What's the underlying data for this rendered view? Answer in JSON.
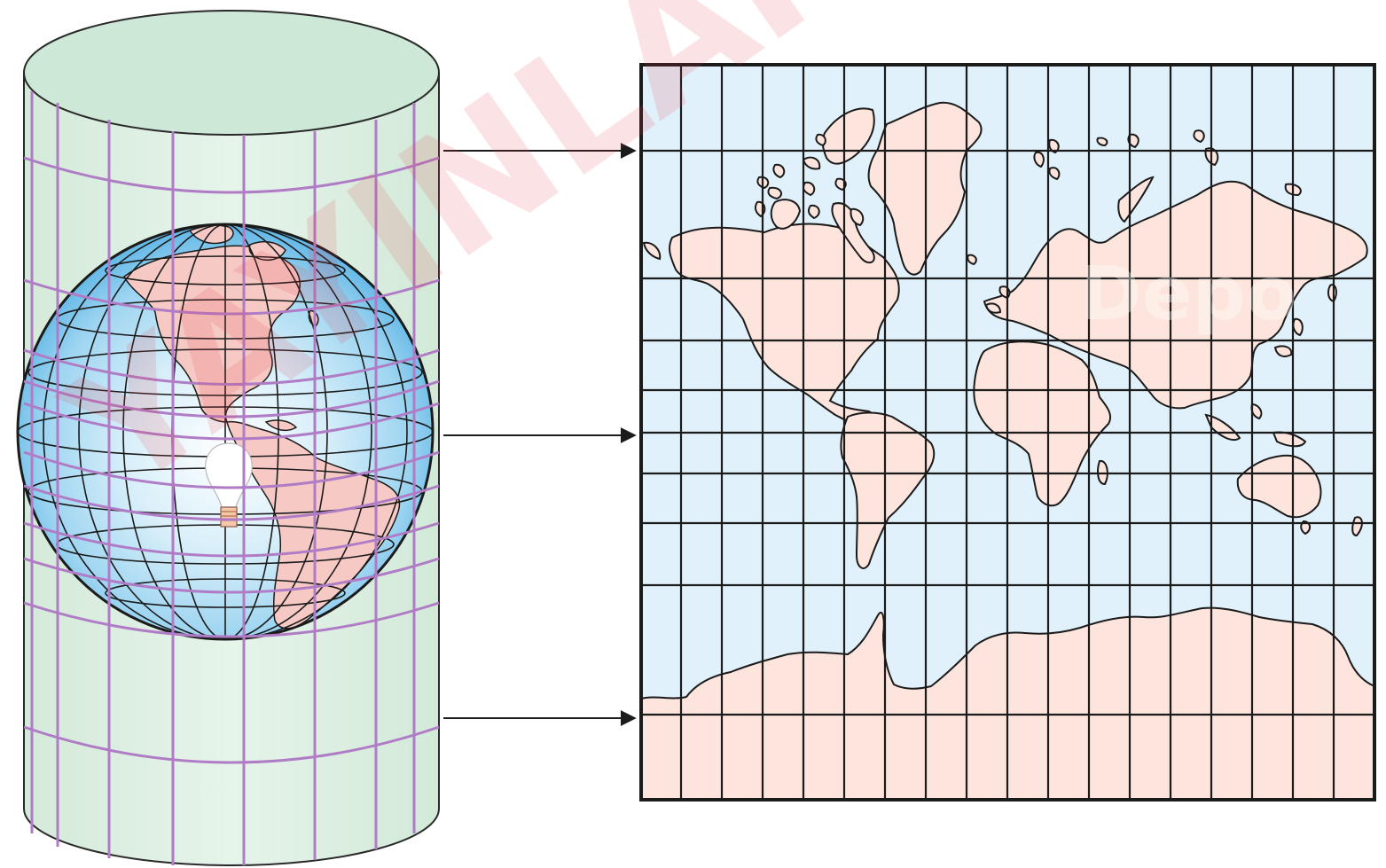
{
  "diagram": {
    "kind": "cylindrical-map-projection",
    "projected_map": "world",
    "projection_lines": 3,
    "watermark": {
      "text": "YAYINLARI",
      "stamp": "Depo"
    },
    "colors": {
      "cylinder_fill": "#e2f2e6",
      "cylinder_top": "#cde8d6",
      "graticule_on_cylinder": "#b07cc6",
      "globe_ocean": "#8fd0f0",
      "globe_land": "#f6c9c4",
      "map_ocean": "#e1f1fb",
      "map_land": "#fde5dd",
      "grid_line": "#1b1b1b",
      "arrow": "#1b1b1b",
      "watermark": "#e63a46"
    }
  }
}
